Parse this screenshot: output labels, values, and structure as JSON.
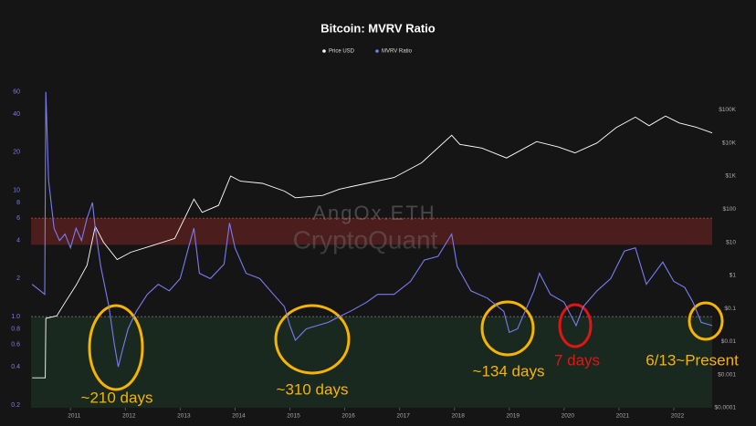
{
  "chart_data": {
    "type": "line",
    "title": "Bitcoin: MVRV Ratio",
    "log_scale": true,
    "legend": "top",
    "xlim": [
      2010.28,
      2022.7
    ],
    "xticks": [
      2011,
      2012,
      2013,
      2014,
      2015,
      2016,
      2017,
      2018,
      2019,
      2020,
      2021,
      2022
    ],
    "ylim": [
      0.19,
      66
    ],
    "yticks": [
      0.2,
      0.4,
      0.6,
      0.8,
      {
        "value": 1,
        "label": "1.0"
      },
      2,
      4,
      6,
      8,
      10,
      20,
      40,
      60
    ],
    "y2lim": [
      0.0001,
      500000
    ],
    "y2ticks": [
      {
        "value": 0.0001,
        "label": "$0.0001"
      },
      {
        "value": 0.001,
        "label": "$0.001"
      },
      {
        "value": 0.01,
        "label": "$0.01"
      },
      {
        "value": 0.1,
        "label": "$0.1"
      },
      {
        "value": 1,
        "label": "$1"
      },
      {
        "value": 10,
        "label": "$10"
      },
      {
        "value": 100,
        "label": "$100"
      },
      {
        "value": 1000,
        "label": "$1K"
      },
      {
        "value": 10000,
        "label": "$10K"
      },
      {
        "value": 100000,
        "label": "$100K"
      }
    ],
    "bands": [
      {
        "from": 3.7,
        "to": 6,
        "color": "#5a1f1f"
      },
      {
        "from": 0.19,
        "to": 1,
        "color": "#1b2e22"
      }
    ],
    "series": [
      {
        "name": "Price USD",
        "color": "#ffffff",
        "axis": "y2",
        "x": [
          2010.3,
          2010.54,
          2010.55,
          2010.75,
          2010.9,
          2011.1,
          2011.3,
          2011.45,
          2011.6,
          2011.85,
          2012.1,
          2012.5,
          2012.9,
          2013.25,
          2013.4,
          2013.7,
          2013.92,
          2014.1,
          2014.5,
          2014.9,
          2015.1,
          2015.6,
          2015.9,
          2016.4,
          2016.9,
          2017.4,
          2017.95,
          2018.1,
          2018.5,
          2018.95,
          2019.5,
          2019.9,
          2020.2,
          2020.6,
          2020.95,
          2021.3,
          2021.55,
          2021.85,
          2022.1,
          2022.4,
          2022.7
        ],
        "values": [
          0.0008,
          0.0008,
          0.05,
          0.06,
          0.15,
          0.5,
          2,
          30,
          10,
          3,
          5,
          8,
          13,
          200,
          80,
          130,
          1000,
          700,
          600,
          350,
          220,
          260,
          400,
          600,
          900,
          2500,
          17000,
          9000,
          7000,
          3500,
          11000,
          7500,
          5000,
          10000,
          29000,
          60000,
          33000,
          65000,
          40000,
          30000,
          20000
        ]
      },
      {
        "name": "MVRV Ratio",
        "color": "#7b7bf2",
        "x": [
          2010.3,
          2010.45,
          2010.53,
          2010.55,
          2010.6,
          2010.7,
          2010.8,
          2010.9,
          2011.0,
          2011.1,
          2011.2,
          2011.3,
          2011.4,
          2011.45,
          2011.55,
          2011.7,
          2011.8,
          2011.87,
          2011.95,
          2012.05,
          2012.2,
          2012.4,
          2012.6,
          2012.8,
          2013.0,
          2013.15,
          2013.25,
          2013.35,
          2013.55,
          2013.8,
          2013.9,
          2014.0,
          2014.2,
          2014.45,
          2014.7,
          2014.9,
          2015.0,
          2015.1,
          2015.3,
          2015.5,
          2015.7,
          2015.9,
          2016.1,
          2016.4,
          2016.6,
          2016.9,
          2017.2,
          2017.45,
          2017.7,
          2017.95,
          2018.05,
          2018.3,
          2018.6,
          2018.9,
          2019.0,
          2019.15,
          2019.45,
          2019.55,
          2019.75,
          2020.0,
          2020.22,
          2020.35,
          2020.6,
          2020.85,
          2021.1,
          2021.3,
          2021.5,
          2021.8,
          2022.0,
          2022.2,
          2022.35,
          2022.5,
          2022.7
        ],
        "values": [
          1.8,
          1.6,
          1.5,
          60,
          12,
          5,
          4,
          4.5,
          3.5,
          5,
          4,
          6,
          8,
          5,
          2.5,
          1.2,
          0.6,
          0.4,
          0.55,
          0.8,
          1.1,
          1.5,
          1.8,
          1.6,
          2.0,
          3.5,
          5,
          2.2,
          2.0,
          2.6,
          5.5,
          3.5,
          2.2,
          2.0,
          1.5,
          1.2,
          0.85,
          0.65,
          0.8,
          0.85,
          0.9,
          1.0,
          1.1,
          1.3,
          1.5,
          1.5,
          1.9,
          2.8,
          3.0,
          4.5,
          2.5,
          1.6,
          1.4,
          1.1,
          0.75,
          0.8,
          1.6,
          2.2,
          1.5,
          1.3,
          0.85,
          1.2,
          1.6,
          2.0,
          3.3,
          3.5,
          1.8,
          2.7,
          1.9,
          1.7,
          1.3,
          0.9,
          0.85
        ]
      }
    ],
    "watermark": [
      "AngOx.ETH",
      "CryptoQuant"
    ],
    "annotations": [
      {
        "text": "~210 days",
        "color": "#f5b400"
      },
      {
        "text": "~310 days",
        "color": "#f5b400"
      },
      {
        "text": "~134 days",
        "color": "#f5b400"
      },
      {
        "text": "7 days",
        "color": "#e01515"
      },
      {
        "text": "6/13~Present",
        "color": "#f5b400"
      }
    ]
  }
}
